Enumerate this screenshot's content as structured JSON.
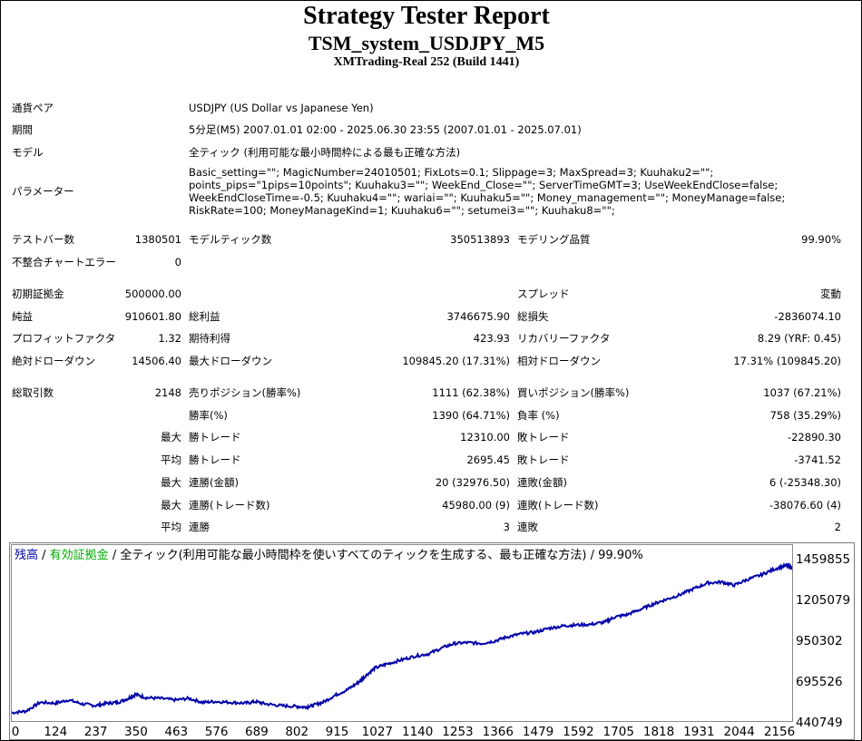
{
  "report": {
    "title": "Strategy Tester Report",
    "subtitle": "TSM_system_USDJPY_M5",
    "server": "XMTrading-Real 252 (Build 1441)"
  },
  "info": {
    "symbol_label": "通貨ペア",
    "symbol_value": "USDJPY (US Dollar vs Japanese Yen)",
    "period_label": "期間",
    "period_value": "5分足(M5) 2007.01.01 02:00 - 2025.06.30 23:55 (2007.01.01 - 2025.07.01)",
    "model_label": "モデル",
    "model_value": "全ティック (利用可能な最小時間枠による最も正確な方法)",
    "params_label": "パラメーター",
    "params_value": "Basic_setting=\"\"; MagicNumber=24010501; FixLots=0.1; Slippage=3; MaxSpread=3; Kuuhaku2=\"\"; points_pips=\"1pips=10points\"; Kuuhaku3=\"\"; WeekEnd_Close=\"\"; ServerTimeGMT=3; UseWeekEndClose=false; WeekEndCloseTime=-0.5; Kuuhaku4=\"\"; wariai=\"\"; Kuuhaku5=\"\"; Money_management=\"\"; MoneyManage=false; RiskRate=100; MoneyManageKind=1; Kuuhaku6=\"\"; setumei3=\"\"; Kuuhaku8=\"\";"
  },
  "stats": {
    "bars_label": "テストバー数",
    "bars_value": "1380501",
    "ticks_label": "モデルティック数",
    "ticks_value": "350513893",
    "quality_label": "モデリング品質",
    "quality_value": "99.90%",
    "mismatch_label": "不整合チャートエラー",
    "mismatch_value": "0",
    "deposit_label": "初期証拠金",
    "deposit_value": "500000.00",
    "spread_label": "スプレッド",
    "spread_value": "変動",
    "net_label": "純益",
    "net_value": "910601.80",
    "gross_profit_label": "総利益",
    "gross_profit_value": "3746675.90",
    "gross_loss_label": "総損失",
    "gross_loss_value": "-2836074.10",
    "pf_label": "プロフィットファクタ",
    "pf_value": "1.32",
    "expected_label": "期待利得",
    "expected_value": "423.93",
    "recovery_label": "リカバリーファクタ",
    "recovery_value": "8.29 (YRF: 0.45)",
    "abs_dd_label": "絶対ドローダウン",
    "abs_dd_value": "14506.40",
    "max_dd_label": "最大ドローダウン",
    "max_dd_value": "109845.20 (17.31%)",
    "rel_dd_label": "相対ドローダウン",
    "rel_dd_value": "17.31% (109845.20)",
    "total_label": "総取引数",
    "total_value": "2148",
    "short_label": "売りポジション(勝率%)",
    "short_value": "1111 (62.38%)",
    "long_label": "買いポジション(勝率%)",
    "long_value": "1037 (67.21%)",
    "win_label": "勝率(%)",
    "win_value": "1390 (64.71%)",
    "loss_label": "負率 (%)",
    "loss_value": "758 (35.29%)",
    "max_word": "最大",
    "avg_word": "平均",
    "largest_win_label": "勝トレード",
    "largest_win_value": "12310.00",
    "largest_loss_label": "敗トレード",
    "largest_loss_value": "-22890.30",
    "avg_win_label": "勝トレード",
    "avg_win_value": "2695.45",
    "avg_loss_label": "敗トレード",
    "avg_loss_value": "-3741.52",
    "cons_win_money_label": "連勝(金額)",
    "cons_win_money_value": "20 (32976.50)",
    "cons_loss_money_label": "連敗(金額)",
    "cons_loss_money_value": "6 (-25348.30)",
    "cons_win_count_label": "連勝(トレード数)",
    "cons_win_count_value": "45980.00 (9)",
    "cons_loss_count_label": "連敗(トレード数)",
    "cons_loss_count_value": "-38076.60 (4)",
    "avg_cons_win_label": "連勝",
    "avg_cons_win_value": "3",
    "avg_cons_loss_label": "連敗",
    "avg_cons_loss_value": "2"
  },
  "chart_data": {
    "type": "line",
    "legend_balance": "残高",
    "legend_sep1": " / ",
    "legend_equity": "有効証拠金",
    "legend_sep2": " / ",
    "legend_model": "全ティック(利用可能な最小時間枠を使いすべてのティックを生成する、最も正確な方法) / 99.90%",
    "colors": {
      "balance": "#0000aa",
      "equity": "#00aa00",
      "text": "#000000"
    },
    "x_ticks": [
      "0",
      "124",
      "237",
      "350",
      "463",
      "576",
      "689",
      "802",
      "915",
      "1027",
      "1140",
      "1253",
      "1366",
      "1479",
      "1592",
      "1705",
      "1818",
      "1931",
      "2044",
      "2156"
    ],
    "y_ticks": [
      "1459855",
      "1205079",
      "950302",
      "695526",
      "440749"
    ],
    "ylim": [
      440749,
      1459855
    ],
    "xlim": [
      0,
      2208
    ],
    "series": [
      {
        "x": [
          0,
          40,
          80,
          124,
          160,
          200,
          237,
          270,
          300,
          330,
          350,
          380,
          420,
          463,
          500,
          540,
          576,
          620,
          660,
          689,
          720,
          760,
          802,
          830,
          850,
          880,
          915,
          950,
          980,
          1000,
          1027,
          1060,
          1100,
          1140,
          1180,
          1220,
          1253,
          1290,
          1330,
          1366,
          1400,
          1440,
          1479,
          1520,
          1560,
          1592,
          1640,
          1680,
          1705,
          1740,
          1780,
          1818,
          1850,
          1890,
          1931,
          1970,
          2010,
          2044,
          2080,
          2120,
          2156,
          2190,
          2208
        ],
        "y": [
          510000,
          520000,
          575000,
          570000,
          590000,
          565000,
          555000,
          570000,
          575000,
          600000,
          625000,
          605000,
          600000,
          590000,
          600000,
          575000,
          580000,
          575000,
          570000,
          580000,
          565000,
          555000,
          550000,
          545000,
          555000,
          575000,
          620000,
          655000,
          700000,
          740000,
          790000,
          815000,
          840000,
          865000,
          880000,
          920000,
          945000,
          950000,
          945000,
          960000,
          985000,
          1005000,
          1015000,
          1040000,
          1055000,
          1060000,
          1065000,
          1080000,
          1110000,
          1125000,
          1160000,
          1195000,
          1220000,
          1250000,
          1290000,
          1325000,
          1330000,
          1310000,
          1345000,
          1375000,
          1410000,
          1435000,
          1420000
        ]
      }
    ]
  }
}
